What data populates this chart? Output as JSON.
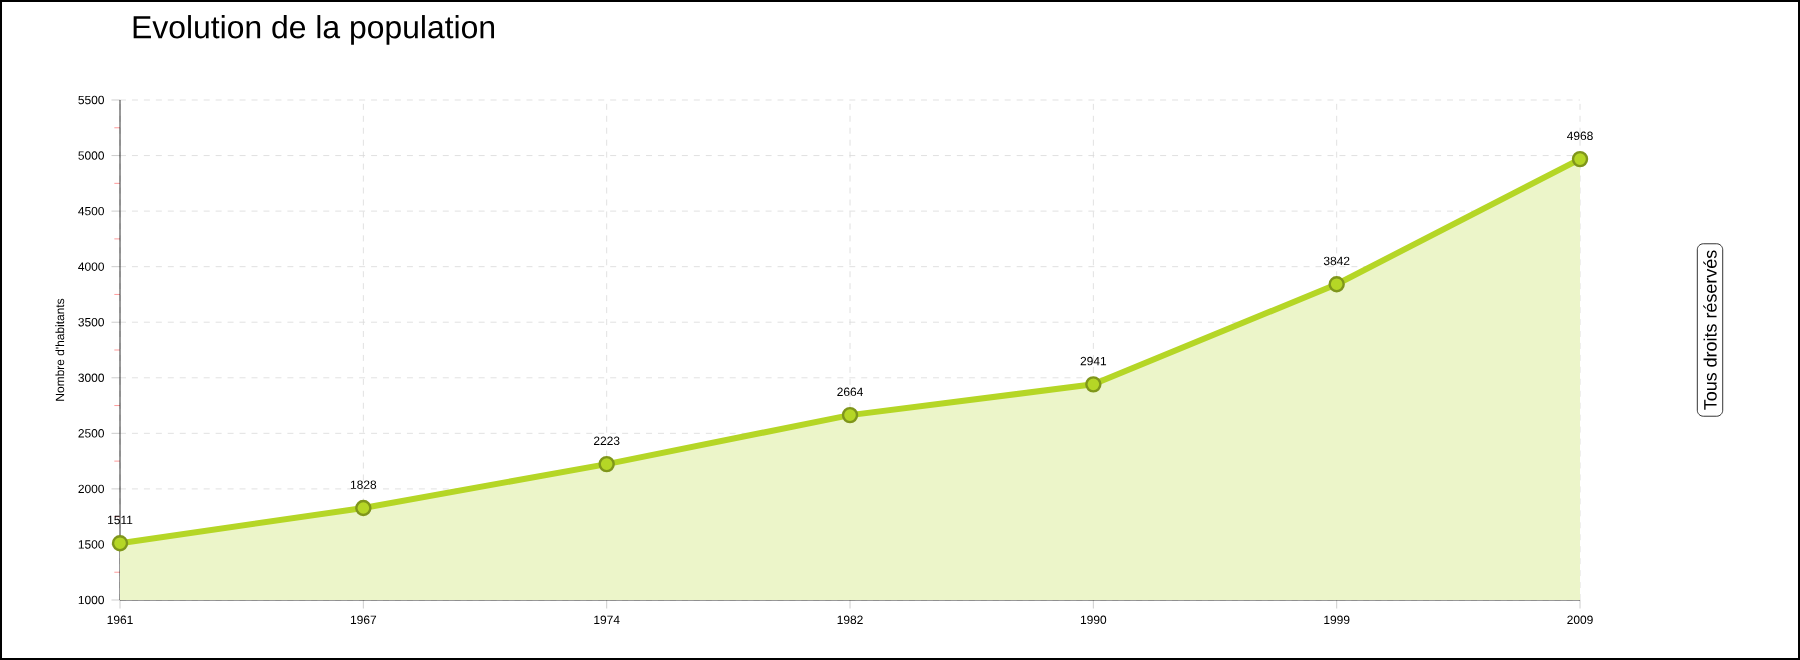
{
  "chart_data": {
    "type": "area",
    "title": "Evolution de la population",
    "ylabel": "Nombre d'habitants",
    "categories": [
      "1961",
      "1967",
      "1974",
      "1982",
      "1990",
      "1999",
      "2009"
    ],
    "series": [
      {
        "color": "#b5d626",
        "values": [
          1511,
          1828,
          2223,
          2664,
          2941,
          3842,
          4968
        ]
      }
    ],
    "ylim": [
      1000,
      5500
    ],
    "yticks": [
      1000,
      1500,
      2000,
      2500,
      3000,
      3500,
      4000,
      4500,
      5000,
      5500
    ],
    "grid": true,
    "marker": "circle",
    "data_labels": true,
    "annotations": [
      "Tous droits réservés"
    ]
  }
}
